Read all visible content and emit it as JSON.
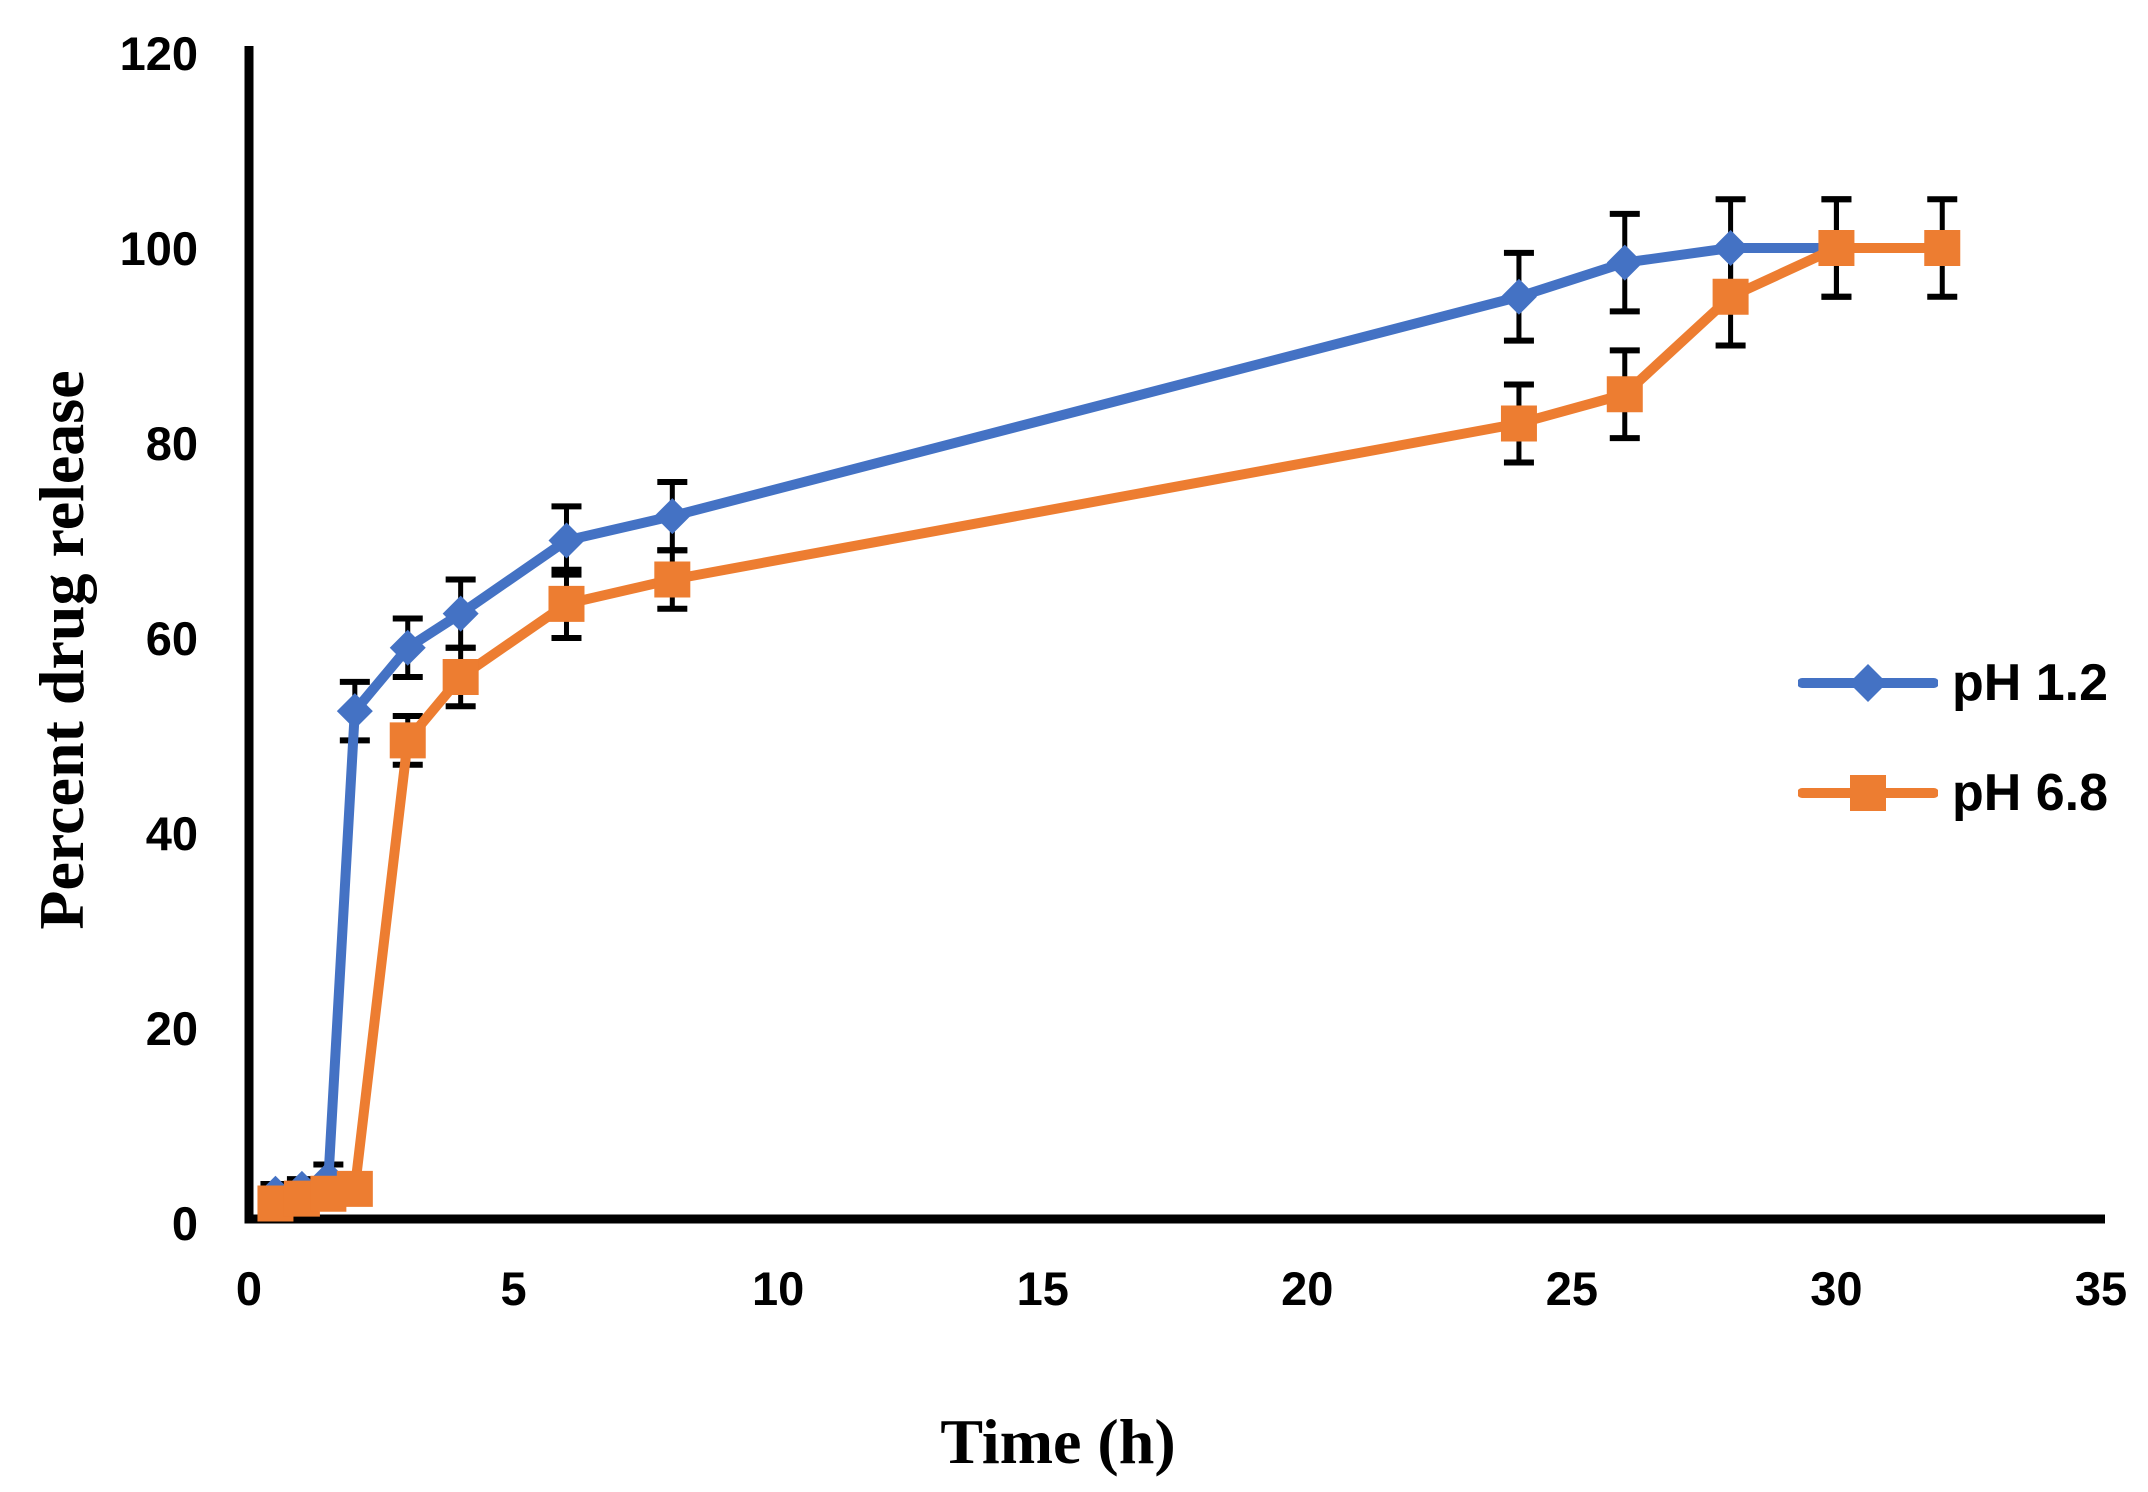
{
  "chart_data": {
    "type": "line",
    "title": "",
    "xlabel": "Time (h)",
    "ylabel": "Percent drug release",
    "xlim": [
      0,
      35
    ],
    "ylim": [
      0,
      120
    ],
    "x_ticks": [
      0,
      5,
      10,
      15,
      20,
      25,
      30,
      35
    ],
    "y_ticks": [
      0,
      20,
      40,
      60,
      80,
      100,
      120
    ],
    "grid": false,
    "legend_position": "center-right",
    "axis_color": "#000000",
    "error_bar_color": "#000000",
    "series": [
      {
        "name": "pH 1.2",
        "color": "#4472C4",
        "marker": "diamond",
        "x": [
          0.5,
          1,
          1.5,
          2,
          3,
          4,
          6,
          8,
          24,
          26,
          28,
          30
        ],
        "y": [
          3,
          3.5,
          4.5,
          52.5,
          59,
          62.5,
          70,
          72.5,
          95,
          98.5,
          100,
          100
        ],
        "yerr": [
          1,
          1,
          1.5,
          3,
          3,
          3.5,
          3.5,
          3.5,
          4.5,
          5,
          5,
          5
        ]
      },
      {
        "name": "pH 6.8",
        "color": "#ED7D31",
        "marker": "square",
        "x": [
          0.5,
          1,
          1.5,
          2,
          3,
          4,
          6,
          8,
          24,
          26,
          28,
          30,
          32
        ],
        "y": [
          2,
          2.5,
          3,
          3.5,
          49.5,
          56,
          63.5,
          66,
          82,
          85,
          95,
          100,
          100
        ],
        "yerr": [
          1,
          1,
          1,
          1.5,
          2.5,
          3,
          3.5,
          3,
          4,
          4.5,
          5,
          5,
          5
        ]
      }
    ]
  }
}
